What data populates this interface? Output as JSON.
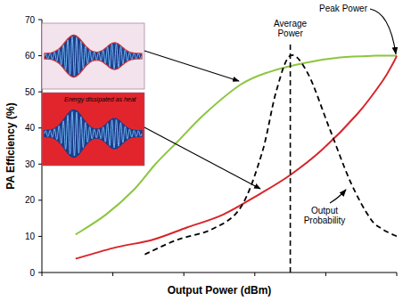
{
  "chart_data": {
    "type": "line",
    "x_label": "Output Power (dBm)",
    "y_label": "PA Efficiency (%)",
    "xlim": [
      0,
      100
    ],
    "ylim": [
      0,
      70
    ],
    "xticks": [
      0,
      20,
      40,
      60,
      80,
      100
    ],
    "yticks": [
      0,
      10,
      20,
      30,
      40,
      50,
      60,
      70
    ],
    "grid": false,
    "tick_labels": "y",
    "series": [
      {
        "color": "#8cc63e",
        "x": [
          9.5,
          18,
          26,
          32,
          38,
          46,
          56,
          64,
          74,
          84,
          94,
          100
        ],
        "values": [
          10.5,
          16,
          23,
          30,
          36,
          44,
          52,
          55.5,
          58,
          59.5,
          60,
          60
        ]
      },
      {
        "color": "#d7262b",
        "x": [
          9.5,
          21,
          31,
          41,
          51,
          61,
          70,
          79,
          89,
          96,
          99,
          100
        ],
        "values": [
          3.8,
          7,
          9,
          12.5,
          16,
          21.5,
          27,
          34,
          44,
          53,
          58,
          60
        ]
      },
      {
        "name": "Output Probability",
        "color": "#000000",
        "line_style": "dashed",
        "x": [
          29,
          38,
          48,
          56,
          62,
          66,
          70,
          75,
          81,
          87,
          92.5,
          96,
          100
        ],
        "values": [
          5,
          9,
          12,
          18,
          33,
          50,
          60,
          55,
          40,
          25,
          15,
          12,
          10
        ]
      }
    ],
    "annotations": [
      {
        "text": "Average Power",
        "x": 70
      },
      {
        "text": "Peak Power",
        "x": 100,
        "y": 60
      },
      {
        "text": "Energy dissipated as heat"
      }
    ]
  }
}
